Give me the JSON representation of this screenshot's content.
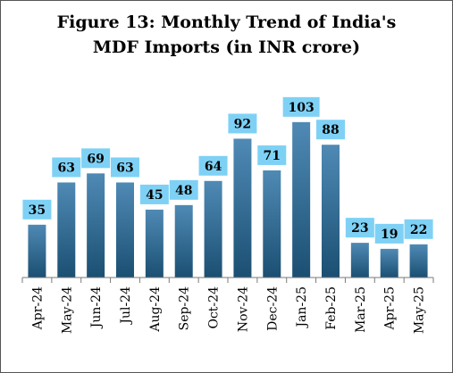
{
  "chart_data": {
    "type": "bar",
    "title_lines": [
      "Figure 13: Monthly Trend of India's",
      "MDF Imports (in INR crore)"
    ],
    "xlabel": "",
    "ylabel": "",
    "categories": [
      "Apr-24",
      "May-24",
      "Jun-24",
      "Jul-24",
      "Aug-24",
      "Sep-24",
      "Oct-24",
      "Nov-24",
      "Dec-24",
      "Jan-25",
      "Feb-25",
      "Mar-25",
      "Apr-25",
      "May-25"
    ],
    "values": [
      35,
      63,
      69,
      63,
      45,
      48,
      64,
      92,
      71,
      103,
      88,
      23,
      19,
      22
    ],
    "ylim": [
      0,
      110
    ],
    "grid": false,
    "legend": "none",
    "colors": {
      "bar_dark": "#1b4f72",
      "bar_light": "#4f8ab5",
      "label_box": "#7ed1f5",
      "axis": "#7a7a7a",
      "text": "#000000"
    }
  }
}
